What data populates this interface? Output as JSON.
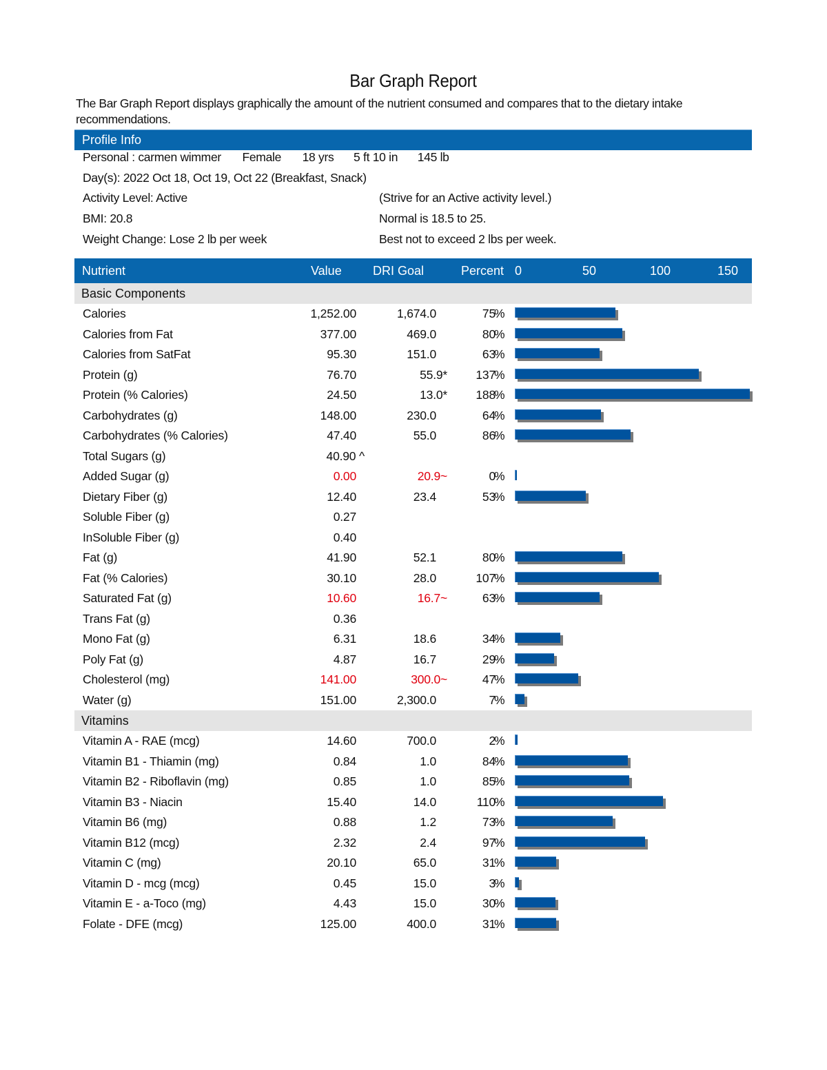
{
  "report": {
    "title": "Bar Graph Report",
    "description": "The Bar Graph Report displays graphically the amount of the nutrient consumed and compares that to the dietary intake recommendations."
  },
  "profile": {
    "header": "Profile Info",
    "personal_label": "Personal : carmen wimmer",
    "gender": "Female",
    "age": "18 yrs",
    "height": "5 ft 10 in",
    "weight": "145 lb",
    "days": "Day(s):  2022 Oct 18, Oct 19, Oct 22 (Breakfast, Snack)",
    "activity_level": "Activity Level: Active",
    "activity_note": "(Strive for an Active activity level.)",
    "bmi": "BMI: 20.8",
    "bmi_note": "Normal is 18.5 to 25.",
    "weight_change": "Weight Change: Lose 2 lb per week",
    "weight_change_note": "Best not to exceed 2 lbs per week."
  },
  "table": {
    "headers": {
      "nutrient": "Nutrient",
      "value": "Value",
      "goal": "DRI Goal",
      "percent": "Percent",
      "axis_ticks": [
        "0",
        "50",
        "100",
        "150"
      ]
    },
    "sections": [
      {
        "label": "Basic Components",
        "rows": [
          {
            "name": "Calories",
            "value": "1,252.00",
            "goal": "1,674.0",
            "percent": "75",
            "red": false
          },
          {
            "name": "Calories from Fat",
            "value": "377.00",
            "goal": "469.0",
            "percent": "80",
            "red": false
          },
          {
            "name": "Calories from SatFat",
            "value": "95.30",
            "goal": "151.0",
            "percent": "63",
            "red": false
          },
          {
            "name": "Protein (g)",
            "value": "76.70",
            "goal": "55.9*",
            "percent": "137",
            "red": false
          },
          {
            "name": "Protein (% Calories)",
            "value": "24.50",
            "goal": "13.0*",
            "percent": "188",
            "red": false
          },
          {
            "name": "Carbohydrates (g)",
            "value": "148.00",
            "goal": "230.0",
            "percent": "64",
            "red": false
          },
          {
            "name": "Carbohydrates (% Calories)",
            "value": "47.40",
            "goal": "55.0",
            "percent": "86",
            "red": false
          },
          {
            "name": "Total Sugars (g)",
            "value": "40.90 ^",
            "goal": "",
            "percent": "",
            "red": false
          },
          {
            "name": "Added Sugar (g)",
            "value": "0.00",
            "goal": "20.9~",
            "percent": "0",
            "red": true
          },
          {
            "name": "Dietary Fiber (g)",
            "value": "12.40",
            "goal": "23.4",
            "percent": "53",
            "red": false
          },
          {
            "name": "Soluble Fiber (g)",
            "value": "0.27",
            "goal": "",
            "percent": "",
            "red": false
          },
          {
            "name": "InSoluble Fiber (g)",
            "value": "0.40",
            "goal": "",
            "percent": "",
            "red": false
          },
          {
            "name": "Fat (g)",
            "value": "41.90",
            "goal": "52.1",
            "percent": "80",
            "red": false
          },
          {
            "name": "Fat (% Calories)",
            "value": "30.10",
            "goal": "28.0",
            "percent": "107",
            "red": false
          },
          {
            "name": "Saturated Fat (g)",
            "value": "10.60",
            "goal": "16.7~",
            "percent": "63",
            "red": true
          },
          {
            "name": "Trans Fat (g)",
            "value": "0.36",
            "goal": "",
            "percent": "",
            "red": false
          },
          {
            "name": "Mono Fat (g)",
            "value": "6.31",
            "goal": "18.6",
            "percent": "34",
            "red": false
          },
          {
            "name": "Poly Fat (g)",
            "value": "4.87",
            "goal": "16.7",
            "percent": "29",
            "red": false
          },
          {
            "name": "Cholesterol (mg)",
            "value": "141.00",
            "goal": "300.0~",
            "percent": "47",
            "red": true
          },
          {
            "name": "Water (g)",
            "value": "151.00",
            "goal": "2,300.0",
            "percent": "7",
            "red": false
          }
        ]
      },
      {
        "label": "Vitamins",
        "rows": [
          {
            "name": "Vitamin A - RAE (mcg)",
            "value": "14.60",
            "goal": "700.0",
            "percent": "2",
            "red": false
          },
          {
            "name": "Vitamin B1 - Thiamin (mg)",
            "value": "0.84",
            "goal": "1.0",
            "percent": "84",
            "red": false
          },
          {
            "name": "Vitamin B2 - Riboflavin (mg)",
            "value": "0.85",
            "goal": "1.0",
            "percent": "85",
            "red": false
          },
          {
            "name": "Vitamin B3 - Niacin",
            "value": "15.40",
            "goal": "14.0",
            "percent": "110",
            "red": false
          },
          {
            "name": "Vitamin B6 (mg)",
            "value": "0.88",
            "goal": "1.2",
            "percent": "73",
            "red": false
          },
          {
            "name": "Vitamin B12 (mcg)",
            "value": "2.32",
            "goal": "2.4",
            "percent": "97",
            "red": false
          },
          {
            "name": "Vitamin C (mg)",
            "value": "20.10",
            "goal": "65.0",
            "percent": "31",
            "red": false
          },
          {
            "name": "Vitamin D - mcg (mcg)",
            "value": "0.45",
            "goal": "15.0",
            "percent": "3",
            "red": false
          },
          {
            "name": "Vitamin E - a-Toco (mg)",
            "value": "4.43",
            "goal": "15.0",
            "percent": "30",
            "red": false
          },
          {
            "name": "Folate - DFE (mcg)",
            "value": "125.00",
            "goal": "400.0",
            "percent": "31",
            "red": false
          }
        ]
      }
    ],
    "percent_sign": "%"
  },
  "colors": {
    "header_blue": "#0866ad",
    "bar_blue": "#00539e",
    "bar_shadow": "#7a7a7a",
    "section_gray": "#e4e4e4",
    "warning_red": "#e0000f"
  }
}
